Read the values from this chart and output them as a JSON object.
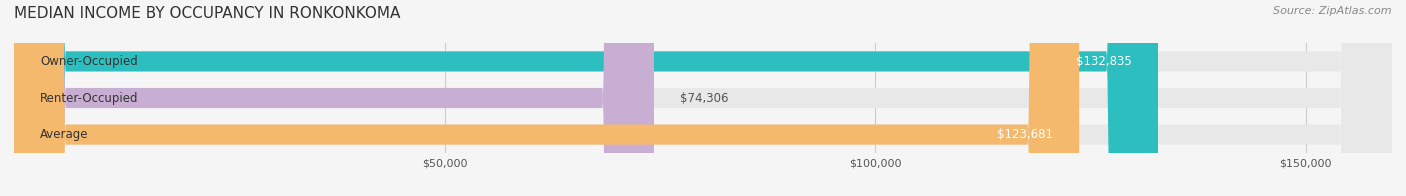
{
  "title": "MEDIAN INCOME BY OCCUPANCY IN RONKONKOMA",
  "source": "Source: ZipAtlas.com",
  "categories": [
    "Owner-Occupied",
    "Renter-Occupied",
    "Average"
  ],
  "values": [
    132835,
    74306,
    123681
  ],
  "bar_colors": [
    "#2dbfbf",
    "#c9aed4",
    "#f5b96e"
  ],
  "value_labels": [
    "$132,835",
    "$74,306",
    "$123,681"
  ],
  "xlim": [
    0,
    160000
  ],
  "xticks": [
    0,
    50000,
    100000,
    150000
  ],
  "xtick_labels": [
    "",
    "$50,000",
    "$100,000",
    "$150,000"
  ],
  "bar_height": 0.55,
  "background_color": "#f5f5f5",
  "bar_bg_color": "#e8e8e8",
  "title_fontsize": 11,
  "source_fontsize": 8,
  "label_fontsize": 8.5,
  "value_fontsize": 8.5
}
